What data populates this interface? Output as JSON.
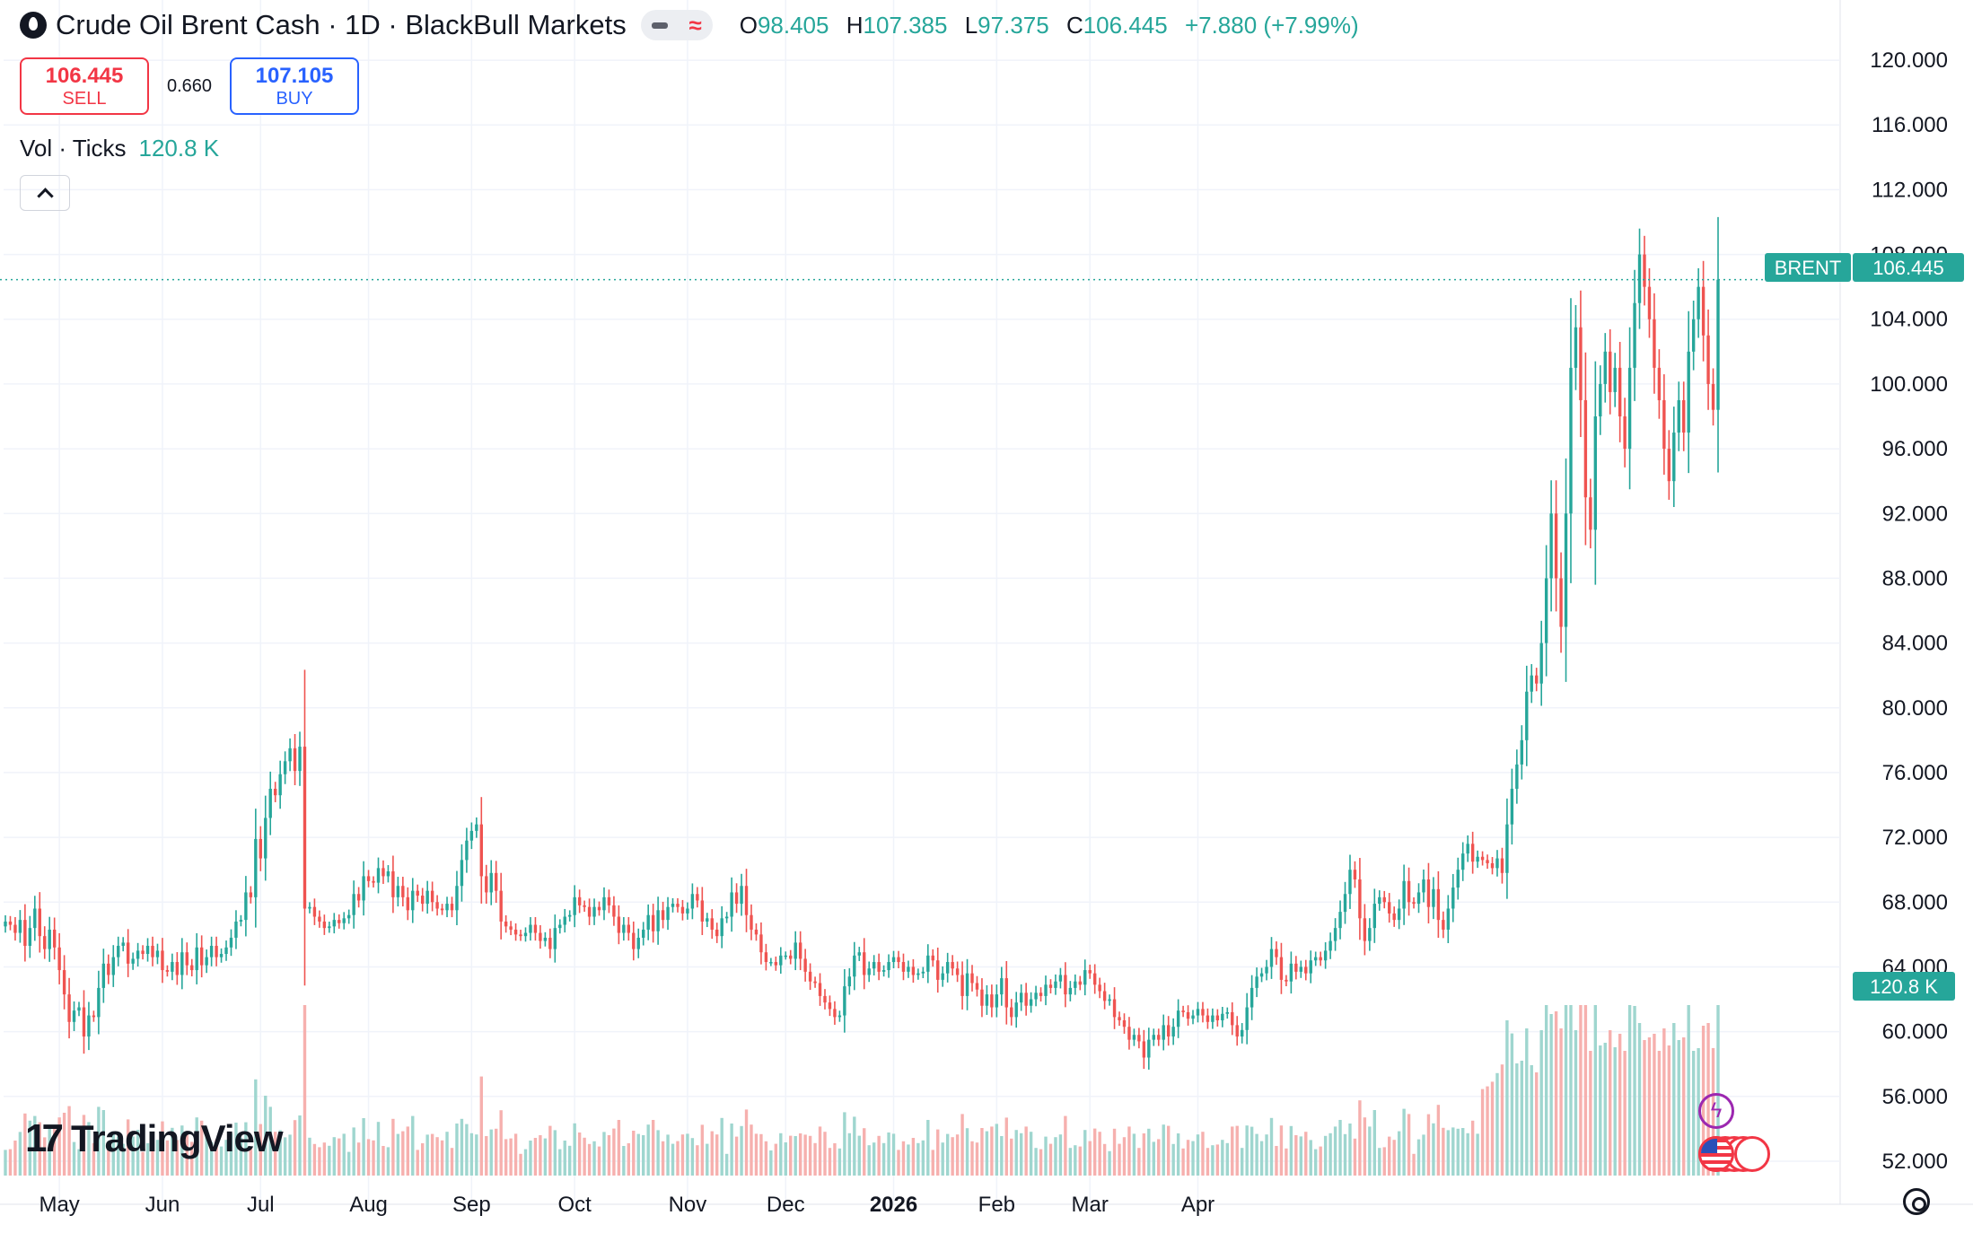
{
  "header": {
    "title": "Crude Oil Brent Cash · 1D · BlackBull Markets",
    "ohlc": {
      "open_label": "O",
      "open": "98.405",
      "high_label": "H",
      "high": "107.385",
      "low_label": "L",
      "low": "97.375",
      "close_label": "C",
      "close": "106.445",
      "change": "+7.880 (+7.99%)"
    }
  },
  "trade": {
    "sell_price": "106.445",
    "sell_label": "SELL",
    "spread": "0.660",
    "buy_price": "107.105",
    "buy_label": "BUY"
  },
  "volume_legend": {
    "label": "Vol · Ticks",
    "value": "120.8 K"
  },
  "branding": {
    "logo_text": "TradingView"
  },
  "colors": {
    "up": "#26a69a",
    "down": "#ef5350",
    "up_volume": "#9fd6cf",
    "down_volume": "#f6b0ae",
    "grid": "#f0f3fa",
    "text": "#131722"
  },
  "icons": [
    "droplet-icon",
    "chevron-up-icon",
    "lightning-icon",
    "us-flag-icon",
    "settings-icon"
  ],
  "chart_data": {
    "type": "candlestick",
    "symbol_label": "BRENT",
    "last_price": 106.445,
    "last_price_label": "106.445",
    "volume_label": "120.8 K",
    "y_axis": {
      "ylim": [
        51,
        121.5
      ],
      "ticks": [
        52,
        56,
        60,
        64,
        68,
        72,
        76,
        80,
        84,
        88,
        92,
        96,
        100,
        104,
        108,
        112,
        116,
        120
      ],
      "tick_labels": [
        "52.000",
        "56.000",
        "60.000",
        "64.000",
        "68.000",
        "72.000",
        "76.000",
        "80.000",
        "84.000",
        "88.000",
        "92.000",
        "96.000",
        "100.000",
        "104.000",
        "108.000",
        "112.000",
        "116.000",
        "120.000"
      ]
    },
    "x_axis": {
      "month_labels": [
        {
          "label": "May",
          "index": 11
        },
        {
          "label": "Jun",
          "index": 32
        },
        {
          "label": "Jul",
          "index": 52
        },
        {
          "label": "Aug",
          "index": 74
        },
        {
          "label": "Sep",
          "index": 95
        },
        {
          "label": "Oct",
          "index": 116
        },
        {
          "label": "Nov",
          "index": 139
        },
        {
          "label": "Dec",
          "index": 159
        },
        {
          "label": "2026",
          "index": 181,
          "bold": true
        },
        {
          "label": "Feb",
          "index": 202
        },
        {
          "label": "Mar",
          "index": 221
        },
        {
          "label": "Apr",
          "index": 243
        }
      ]
    },
    "close": [
      66.8,
      66.6,
      66.1,
      66.9,
      65.3,
      66.4,
      67.6,
      65.9,
      65.1,
      66.3,
      65.2,
      63.8,
      62.3,
      60.6,
      61.3,
      61.5,
      59.7,
      61.0,
      60.9,
      62.7,
      64.2,
      63.5,
      64.6,
      65.3,
      65.5,
      64.2,
      64.5,
      65.0,
      64.8,
      65.3,
      64.6,
      65.0,
      63.8,
      63.7,
      64.3,
      63.5,
      64.9,
      64.1,
      63.8,
      65.2,
      64.1,
      64.6,
      65.3,
      64.6,
      64.8,
      65.2,
      65.8,
      66.8,
      66.9,
      68.6,
      68.3,
      71.9,
      70.7,
      73.2,
      75.0,
      74.6,
      75.9,
      76.7,
      77.5,
      76.1,
      77.6,
      67.6,
      67.7,
      67.1,
      66.8,
      66.4,
      66.5,
      66.9,
      66.7,
      67.0,
      67.2,
      68.5,
      68.1,
      69.6,
      69.3,
      69.2,
      70.1,
      69.6,
      69.9,
      68.3,
      69.0,
      68.3,
      67.5,
      68.7,
      68.4,
      67.9,
      68.7,
      68.0,
      67.6,
      67.5,
      67.9,
      67.5,
      69.0,
      70.6,
      71.8,
      72.4,
      72.8,
      69.6,
      68.6,
      69.8,
      68.7,
      66.8,
      66.5,
      66.3,
      66.0,
      65.9,
      66.1,
      66.6,
      66.1,
      65.6,
      65.8,
      65.1,
      66.4,
      66.6,
      67.1,
      67.2,
      68.3,
      67.8,
      67.7,
      67.1,
      67.7,
      67.5,
      68.3,
      67.8,
      67.1,
      66.1,
      66.6,
      66.1,
      65.1,
      65.8,
      66.3,
      67.2,
      66.2,
      67.5,
      66.9,
      67.7,
      67.9,
      67.7,
      67.3,
      67.6,
      68.5,
      68.1,
      66.8,
      67.0,
      66.3,
      65.9,
      67.0,
      67.1,
      68.6,
      67.9,
      69.0,
      67.2,
      66.3,
      66.0,
      64.9,
      64.3,
      64.3,
      64.1,
      64.7,
      64.7,
      64.5,
      65.5,
      64.5,
      63.7,
      63.1,
      63.0,
      62.2,
      61.8,
      61.4,
      60.9,
      61.0,
      62.8,
      63.4,
      64.7,
      64.9,
      63.5,
      63.9,
      64.3,
      63.7,
      63.8,
      64.3,
      64.6,
      64.3,
      63.7,
      64.0,
      63.5,
      63.6,
      63.7,
      64.7,
      64.4,
      63.2,
      63.6,
      64.3,
      63.9,
      63.5,
      62.2,
      63.6,
      63.0,
      62.6,
      61.6,
      62.3,
      61.5,
      62.3,
      63.3,
      61.5,
      60.9,
      61.8,
      62.4,
      61.6,
      62.0,
      62.4,
      62.2,
      62.9,
      62.7,
      63.1,
      63.5,
      62.3,
      62.7,
      63.1,
      62.9,
      63.8,
      63.6,
      62.9,
      62.5,
      61.9,
      62.0,
      60.9,
      60.7,
      60.3,
      59.5,
      59.8,
      59.4,
      58.4,
      59.5,
      59.8,
      59.5,
      60.4,
      59.7,
      60.3,
      61.3,
      61.2,
      60.8,
      61.0,
      61.4,
      61.0,
      60.6,
      61.0,
      60.7,
      61.1,
      61.2,
      60.4,
      59.7,
      60.1,
      61.5,
      62.7,
      63.4,
      63.6,
      64.0,
      65.1,
      64.6,
      63.2,
      63.1,
      64.2,
      63.7,
      64.0,
      63.6,
      64.4,
      64.6,
      64.4,
      65.0,
      65.6,
      66.4,
      67.4,
      68.5,
      70.0,
      69.4,
      67.0,
      65.6,
      66.4,
      67.9,
      68.3,
      68.0,
      67.3,
      66.9,
      67.6,
      69.3,
      68.0,
      67.9,
      68.6,
      69.4,
      67.7,
      68.8,
      66.9,
      66.3,
      67.6,
      68.9,
      70.0,
      71.0,
      71.6,
      70.5,
      70.8,
      70.6,
      70.4,
      70.1,
      70.7,
      69.8,
      72.8,
      75.0,
      76.5,
      78.0,
      81.0,
      82.0,
      81.5,
      84.0,
      88.0,
      92.0,
      88.0,
      85.0,
      92.0,
      101.0,
      103.5,
      99.0,
      93.0,
      91.0,
      98.0,
      100.0,
      102.0,
      99.5,
      101.0,
      98.0,
      96.0,
      101.0,
      105.0,
      108.0,
      106.0,
      104.0,
      101.0,
      99.0,
      96.0,
      94.0,
      97.0,
      99.0,
      97.0,
      102.0,
      104.0,
      106.0,
      103.0,
      100.0,
      98.405,
      106.445
    ],
    "volume_note": "volume bars rendered from close-to-close change; last bar volume 120.8 K"
  }
}
